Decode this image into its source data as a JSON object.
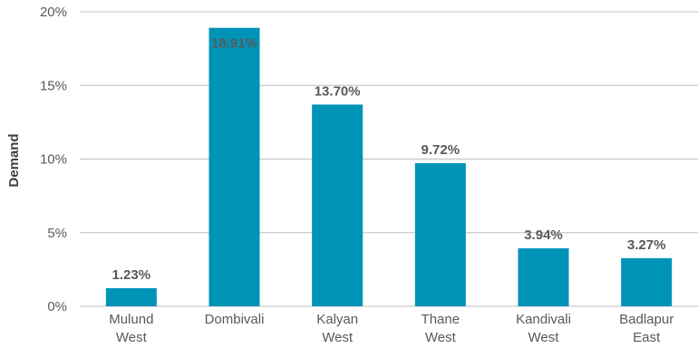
{
  "chart_data": {
    "type": "bar",
    "categories": [
      [
        "Mulund",
        "West"
      ],
      [
        "Dombivali"
      ],
      [
        "Kalyan",
        "West"
      ],
      [
        "Thane",
        "West"
      ],
      [
        "Kandivali",
        "West"
      ],
      [
        "Badlapur",
        "East"
      ]
    ],
    "values": [
      1.23,
      18.91,
      13.7,
      9.72,
      3.94,
      3.27
    ],
    "data_labels": [
      "1.23%",
      "18.91%",
      "13.70%",
      "9.72%",
      "3.94%",
      "3.27%"
    ],
    "ylabel": "Demand",
    "xlabel": "",
    "title": "",
    "ylim": [
      0,
      20
    ],
    "yticks": [
      0,
      5,
      10,
      15,
      20
    ],
    "ytick_labels": [
      "0%",
      "5%",
      "10%",
      "15%",
      "20%"
    ],
    "grid": true,
    "bar_color": "#0093b8",
    "grid_color": "#bfbfbf",
    "text_color": "#595959"
  }
}
